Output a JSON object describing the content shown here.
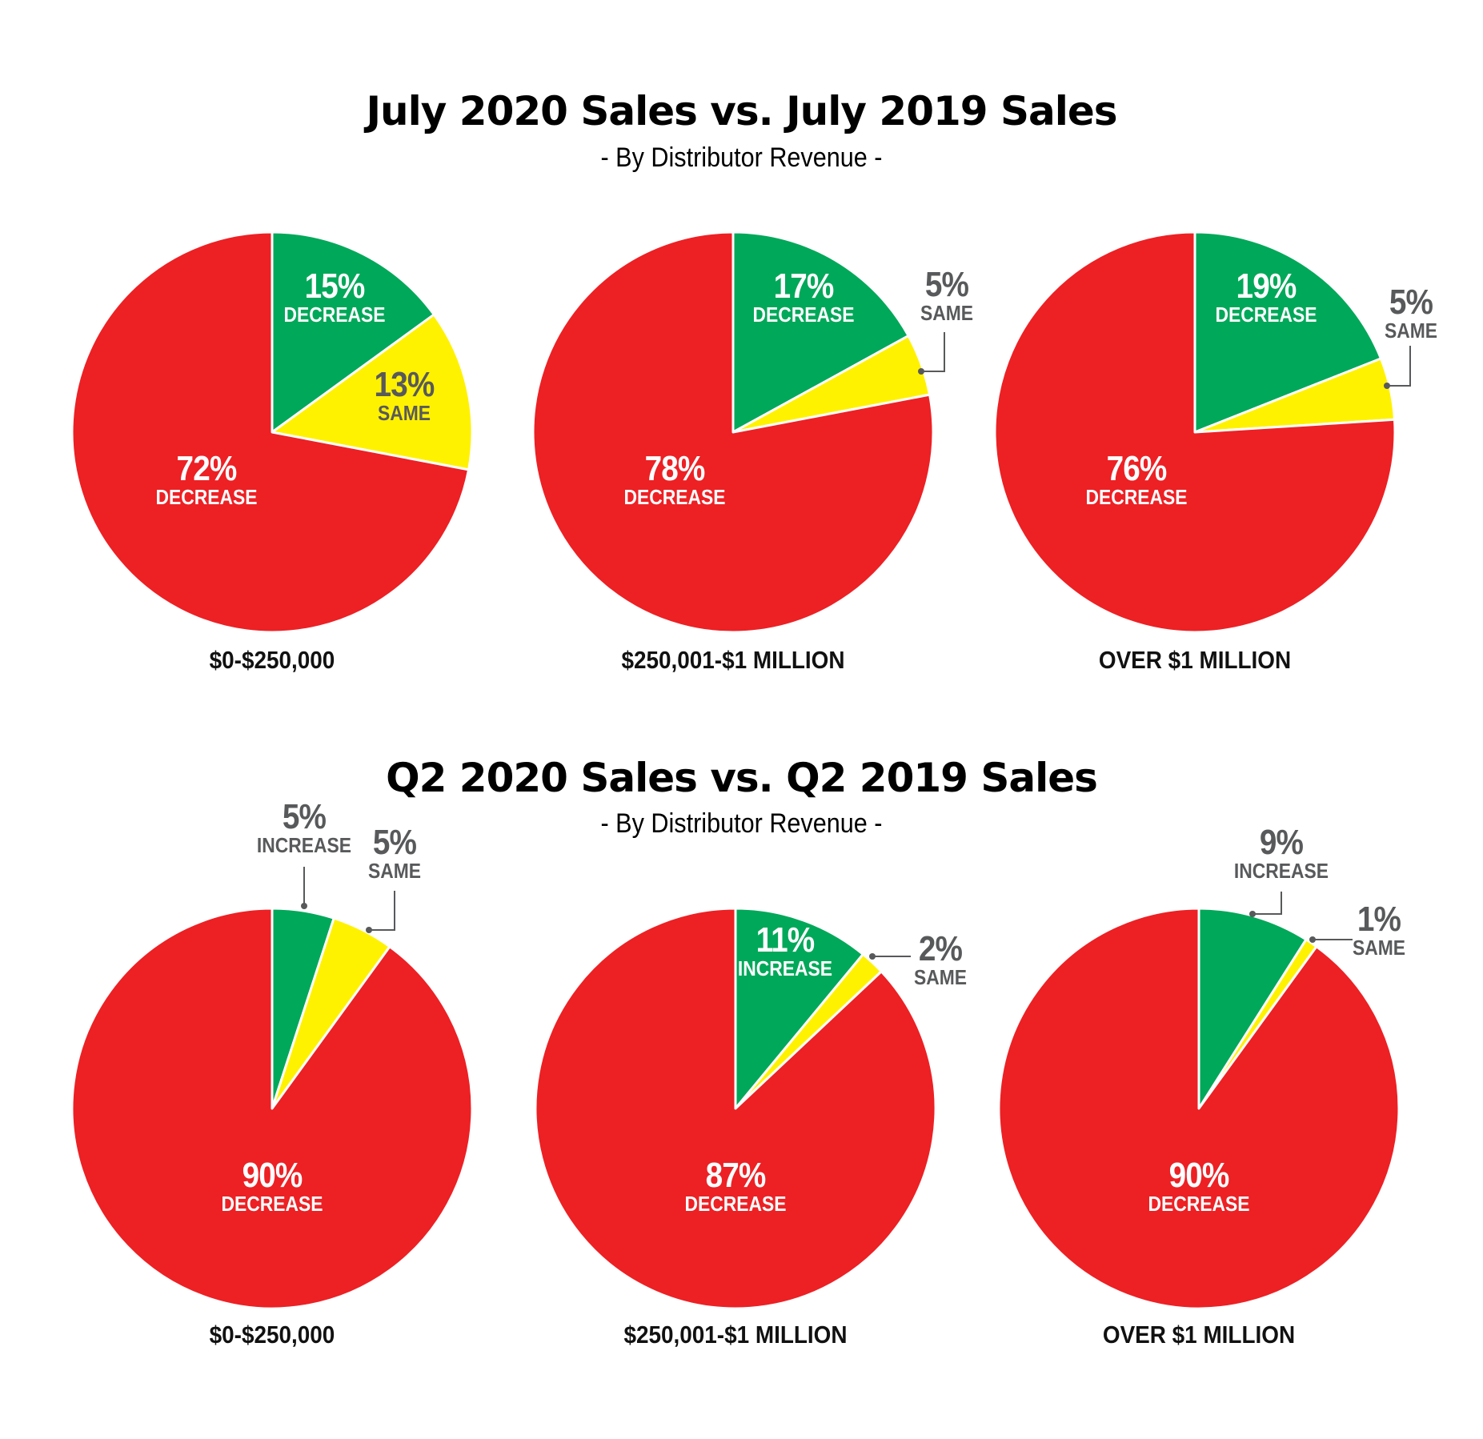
{
  "sections": [
    {
      "title": "July 2020 Sales vs. July 2019 Sales",
      "subtitle": "- By Distributor Revenue -"
    },
    {
      "title": "Q2 2020 Sales vs. Q2 2019 Sales",
      "subtitle": "- By Distributor Revenue -"
    }
  ],
  "colors": {
    "red": "#ed2024",
    "green": "#00a859",
    "yellow": "#fff200",
    "callout": "#58595b"
  },
  "chart_data": [
    {
      "type": "pie",
      "section": "July 2020 Sales vs. July 2019 Sales",
      "caption": "$0-$250,000",
      "slices": [
        {
          "pct": "15%",
          "label": "DECREASE",
          "value": 15,
          "color": "green",
          "labelStyle": "inside"
        },
        {
          "pct": "13%",
          "label": "SAME",
          "value": 13,
          "color": "yellow",
          "labelStyle": "inside-dark"
        },
        {
          "pct": "72%",
          "label": "DECREASE",
          "value": 72,
          "color": "red",
          "labelStyle": "inside"
        }
      ]
    },
    {
      "type": "pie",
      "section": "July 2020 Sales vs. July 2019 Sales",
      "caption": "$250,001-$1 MILLION",
      "slices": [
        {
          "pct": "17%",
          "label": "DECREASE",
          "value": 17,
          "color": "green",
          "labelStyle": "inside"
        },
        {
          "pct": "5%",
          "label": "SAME",
          "value": 5,
          "color": "yellow",
          "labelStyle": "callout"
        },
        {
          "pct": "78%",
          "label": "DECREASE",
          "value": 78,
          "color": "red",
          "labelStyle": "inside"
        }
      ]
    },
    {
      "type": "pie",
      "section": "July 2020 Sales vs. July 2019 Sales",
      "caption": "OVER $1 MILLION",
      "slices": [
        {
          "pct": "19%",
          "label": "DECREASE",
          "value": 19,
          "color": "green",
          "labelStyle": "inside"
        },
        {
          "pct": "5%",
          "label": "SAME",
          "value": 5,
          "color": "yellow",
          "labelStyle": "callout"
        },
        {
          "pct": "76%",
          "label": "DECREASE",
          "value": 76,
          "color": "red",
          "labelStyle": "inside"
        }
      ]
    },
    {
      "type": "pie",
      "section": "Q2 2020 Sales vs. Q2 2019 Sales",
      "caption": "$0-$250,000",
      "slices": [
        {
          "pct": "5%",
          "label": "INCREASE",
          "value": 5,
          "color": "green",
          "labelStyle": "callout"
        },
        {
          "pct": "5%",
          "label": "SAME",
          "value": 5,
          "color": "yellow",
          "labelStyle": "callout"
        },
        {
          "pct": "90%",
          "label": "DECREASE",
          "value": 90,
          "color": "red",
          "labelStyle": "inside"
        }
      ]
    },
    {
      "type": "pie",
      "section": "Q2 2020 Sales vs. Q2 2019 Sales",
      "caption": "$250,001-$1 MILLION",
      "slices": [
        {
          "pct": "11%",
          "label": "INCREASE",
          "value": 11,
          "color": "green",
          "labelStyle": "inside"
        },
        {
          "pct": "2%",
          "label": "SAME",
          "value": 2,
          "color": "yellow",
          "labelStyle": "callout"
        },
        {
          "pct": "87%",
          "label": "DECREASE",
          "value": 87,
          "color": "red",
          "labelStyle": "inside"
        }
      ]
    },
    {
      "type": "pie",
      "section": "Q2 2020 Sales vs. Q2 2019 Sales",
      "caption": "OVER $1 MILLION",
      "slices": [
        {
          "pct": "9%",
          "label": "INCREASE",
          "value": 9,
          "color": "green",
          "labelStyle": "callout"
        },
        {
          "pct": "1%",
          "label": "SAME",
          "value": 1,
          "color": "yellow",
          "labelStyle": "callout"
        },
        {
          "pct": "90%",
          "label": "DECREASE",
          "value": 90,
          "color": "red",
          "labelStyle": "inside"
        }
      ]
    }
  ]
}
